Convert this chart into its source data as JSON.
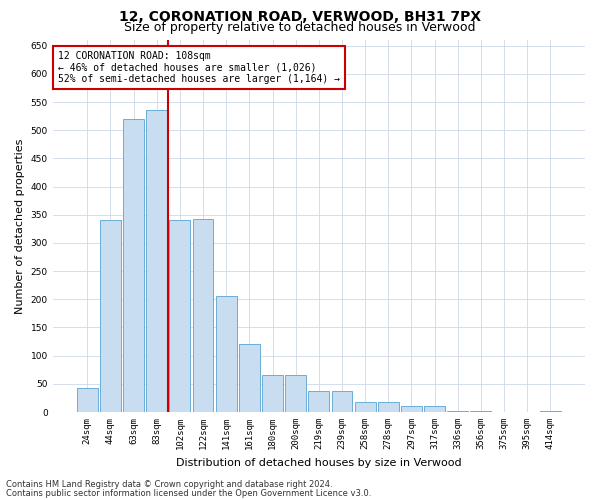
{
  "title": "12, CORONATION ROAD, VERWOOD, BH31 7PX",
  "subtitle": "Size of property relative to detached houses in Verwood",
  "xlabel": "Distribution of detached houses by size in Verwood",
  "ylabel": "Number of detached properties",
  "bar_labels": [
    "24sqm",
    "44sqm",
    "63sqm",
    "83sqm",
    "102sqm",
    "122sqm",
    "141sqm",
    "161sqm",
    "180sqm",
    "200sqm",
    "219sqm",
    "239sqm",
    "258sqm",
    "278sqm",
    "297sqm",
    "317sqm",
    "336sqm",
    "356sqm",
    "375sqm",
    "395sqm",
    "414sqm"
  ],
  "bar_values": [
    42,
    340,
    520,
    535,
    340,
    342,
    205,
    120,
    65,
    65,
    38,
    38,
    18,
    18,
    10,
    10,
    2,
    2,
    0,
    0,
    2
  ],
  "bar_color": "#c8ddf0",
  "bar_edge_color": "#6aaed6",
  "vline_x_index": 4,
  "vline_color": "#cc0000",
  "annotation_text": "12 CORONATION ROAD: 108sqm\n← 46% of detached houses are smaller (1,026)\n52% of semi-detached houses are larger (1,164) →",
  "annotation_box_color": "#ffffff",
  "annotation_box_edge_color": "#cc0000",
  "ylim": [
    0,
    660
  ],
  "yticks": [
    0,
    50,
    100,
    150,
    200,
    250,
    300,
    350,
    400,
    450,
    500,
    550,
    600,
    650
  ],
  "footnote1": "Contains HM Land Registry data © Crown copyright and database right 2024.",
  "footnote2": "Contains public sector information licensed under the Open Government Licence v3.0.",
  "bg_color": "#ffffff",
  "grid_color": "#ccd9e8",
  "title_fontsize": 10,
  "subtitle_fontsize": 9,
  "label_fontsize": 8,
  "tick_fontsize": 6.5,
  "annot_fontsize": 7,
  "footnote_fontsize": 6
}
